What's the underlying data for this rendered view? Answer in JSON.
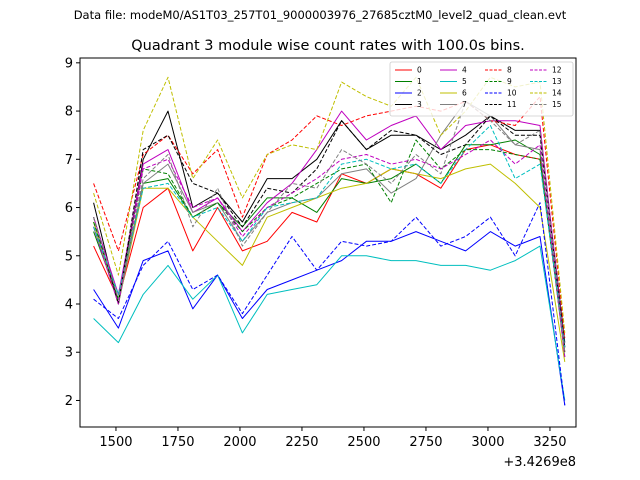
{
  "chart_data": {
    "type": "line",
    "suptitle": "Data file: modeM0/AS1T03_257T01_9000003976_27685cztM0_level2_quad_clean.evt",
    "title": "Quadrant 3 module wise count rates with 100.0s bins.",
    "xlabel": "",
    "ylabel": "",
    "x_offset_label": "+3.4269e8",
    "xlim": [
      1355,
      3355
    ],
    "ylim": [
      1.45,
      9.1
    ],
    "x_ticks": [
      1500,
      1750,
      2000,
      2250,
      2500,
      2750,
      3000,
      3250
    ],
    "y_ticks": [
      2,
      3,
      4,
      5,
      6,
      7,
      8,
      9
    ],
    "x": [
      1410,
      1510,
      1610,
      1710,
      1810,
      1910,
      2010,
      2110,
      2210,
      2310,
      2410,
      2510,
      2610,
      2710,
      2810,
      2910,
      3010,
      3110,
      3210,
      3310
    ],
    "legend": {
      "location": "upper right",
      "columns": 4
    },
    "series": [
      {
        "name": "0",
        "color": "#ff0000",
        "dash": "solid",
        "values": [
          5.2,
          4.1,
          6.0,
          6.4,
          5.1,
          6.0,
          5.1,
          5.3,
          5.9,
          5.7,
          6.7,
          6.5,
          6.8,
          6.7,
          6.4,
          7.2,
          7.3,
          7.1,
          7.0,
          3.0
        ]
      },
      {
        "name": "1",
        "color": "#008000",
        "dash": "solid",
        "values": [
          5.5,
          4.1,
          6.5,
          6.6,
          5.8,
          6.1,
          5.6,
          6.2,
          6.2,
          5.9,
          6.6,
          6.5,
          6.6,
          6.9,
          6.5,
          7.3,
          7.3,
          7.4,
          7.1,
          3.1
        ]
      },
      {
        "name": "2",
        "color": "#0000ff",
        "dash": "solid",
        "values": [
          4.3,
          3.5,
          4.9,
          5.1,
          3.9,
          4.6,
          3.7,
          4.3,
          4.5,
          4.7,
          4.9,
          5.3,
          5.3,
          5.5,
          5.3,
          5.1,
          5.5,
          5.2,
          5.4,
          1.9
        ]
      },
      {
        "name": "3",
        "color": "#000000",
        "dash": "solid",
        "values": [
          6.1,
          4.0,
          7.0,
          8.0,
          6.0,
          6.3,
          5.7,
          6.6,
          6.6,
          7.0,
          7.8,
          7.2,
          7.5,
          7.5,
          7.2,
          7.5,
          7.9,
          7.6,
          7.6,
          3.2
        ]
      },
      {
        "name": "4",
        "color": "#bf00bf",
        "dash": "solid",
        "values": [
          5.8,
          4.2,
          6.9,
          7.2,
          5.9,
          6.2,
          5.5,
          6.1,
          6.5,
          7.2,
          8.0,
          7.4,
          7.7,
          7.9,
          7.2,
          7.7,
          7.8,
          7.8,
          7.7,
          3.1
        ]
      },
      {
        "name": "5",
        "color": "#00bfbf",
        "dash": "solid",
        "values": [
          3.7,
          3.2,
          4.2,
          4.8,
          4.1,
          4.6,
          3.4,
          4.2,
          4.3,
          4.4,
          5.0,
          5.0,
          4.9,
          4.9,
          4.8,
          4.8,
          4.7,
          4.9,
          5.2,
          2.0
        ]
      },
      {
        "name": "6",
        "color": "#bfbf00",
        "dash": "solid",
        "values": [
          5.7,
          4.0,
          6.4,
          6.4,
          5.8,
          5.3,
          4.8,
          5.8,
          6.0,
          6.2,
          6.4,
          6.5,
          6.8,
          6.7,
          6.6,
          6.8,
          6.9,
          6.5,
          6.0,
          2.8
        ]
      },
      {
        "name": "7",
        "color": "#808080",
        "dash": "solid",
        "values": [
          5.6,
          4.0,
          6.5,
          6.9,
          5.9,
          6.1,
          5.3,
          5.9,
          6.1,
          6.2,
          6.7,
          6.8,
          6.3,
          6.6,
          7.5,
          8.2,
          7.9,
          7.3,
          7.2,
          2.9
        ]
      },
      {
        "name": "8",
        "color": "#ff0000",
        "dash": "dashed",
        "values": [
          6.5,
          5.1,
          7.1,
          7.5,
          6.7,
          7.2,
          5.8,
          7.1,
          7.4,
          7.9,
          7.7,
          7.9,
          8.0,
          8.1,
          8.0,
          8.2,
          7.8,
          7.7,
          8.3,
          3.3
        ]
      },
      {
        "name": "9",
        "color": "#008000",
        "dash": "dashed",
        "values": [
          5.7,
          4.1,
          6.8,
          6.7,
          5.8,
          6.1,
          5.5,
          6.0,
          6.2,
          6.5,
          6.8,
          6.9,
          6.1,
          7.4,
          6.8,
          7.2,
          7.2,
          7.1,
          7.0,
          3.0
        ]
      },
      {
        "name": "10",
        "color": "#0000ff",
        "dash": "dashed",
        "values": [
          4.1,
          3.7,
          4.8,
          5.3,
          4.3,
          4.6,
          3.8,
          4.6,
          5.4,
          4.7,
          5.3,
          5.2,
          5.3,
          5.8,
          5.2,
          5.4,
          5.8,
          5.0,
          6.1,
          1.9
        ]
      },
      {
        "name": "11",
        "color": "#000000",
        "dash": "dashed",
        "values": [
          5.8,
          4.0,
          7.2,
          7.5,
          6.5,
          6.3,
          5.6,
          6.4,
          6.3,
          6.8,
          7.8,
          7.2,
          7.6,
          7.5,
          7.1,
          7.3,
          7.9,
          7.5,
          7.5,
          3.1
        ]
      },
      {
        "name": "12",
        "color": "#bf00bf",
        "dash": "dashed",
        "values": [
          5.6,
          4.0,
          6.8,
          7.0,
          6.0,
          6.2,
          5.4,
          6.0,
          6.3,
          6.6,
          7.0,
          7.1,
          6.9,
          7.0,
          6.8,
          7.1,
          7.4,
          6.9,
          7.3,
          2.9
        ]
      },
      {
        "name": "13",
        "color": "#00bfbf",
        "dash": "dashed",
        "values": [
          5.6,
          4.2,
          6.4,
          6.5,
          5.8,
          6.0,
          5.3,
          6.0,
          6.1,
          6.2,
          6.9,
          7.0,
          6.8,
          6.9,
          6.5,
          7.2,
          7.7,
          6.6,
          6.9,
          3.1
        ]
      },
      {
        "name": "14",
        "color": "#bfbf00",
        "dash": "dashed",
        "values": [
          6.3,
          4.6,
          7.6,
          8.7,
          6.6,
          7.4,
          6.2,
          7.1,
          7.3,
          7.2,
          8.6,
          8.3,
          8.1,
          8.7,
          7.5,
          8.0,
          8.7,
          8.5,
          8.6,
          3.4
        ]
      },
      {
        "name": "15",
        "color": "#808080",
        "dash": "dashed",
        "values": [
          5.8,
          4.1,
          6.6,
          7.1,
          5.6,
          6.4,
          5.2,
          5.9,
          6.5,
          6.4,
          7.2,
          6.9,
          6.5,
          7.1,
          6.7,
          8.2,
          7.8,
          7.3,
          7.6,
          3.0
        ]
      }
    ]
  }
}
